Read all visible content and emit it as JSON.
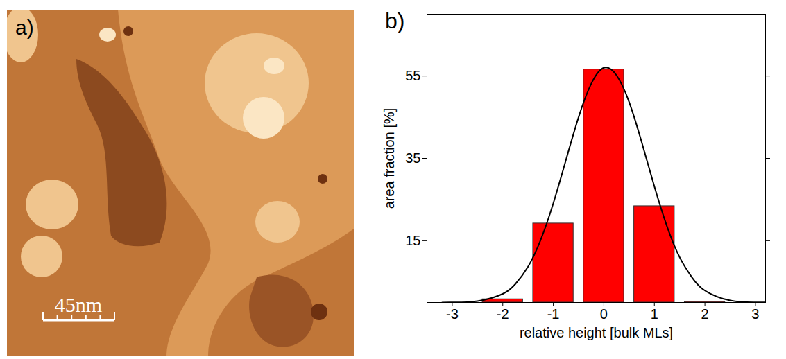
{
  "image_panel": {
    "panel_label": "a)",
    "scale_bar": "45nm"
  },
  "chart_data": {
    "type": "bar",
    "panel_label": "b)",
    "x_label": "relative height [bulk MLs]",
    "y_label": "area fraction [%]",
    "x": [
      -3,
      -2,
      -1,
      0,
      1,
      2,
      3
    ],
    "values": [
      0,
      0.8,
      19.2,
      56.6,
      23.4,
      0.2,
      0
    ],
    "color": "#ff0000",
    "xlim": [
      -3.5,
      3.2
    ],
    "xticks": [
      -3,
      -2,
      -1,
      0,
      1,
      2,
      3
    ],
    "ylim": [
      0,
      70
    ],
    "yticks": [
      15,
      35,
      55
    ],
    "fit": {
      "type": "line",
      "color": "#000000",
      "x": [
        -3.2,
        -3,
        -2.5,
        -2,
        -1.75,
        -1.5,
        -1.25,
        -1,
        -0.75,
        -0.5,
        -0.25,
        0,
        0.25,
        0.5,
        0.75,
        1,
        1.25,
        1.5,
        1.75,
        2,
        2.5,
        3,
        3.2
      ],
      "values": [
        0.02,
        0.04,
        0.35,
        2.1,
        4.5,
        8.7,
        15.2,
        24.1,
        34.6,
        45.0,
        53.1,
        57,
        55.2,
        48.7,
        38.9,
        28.2,
        18.5,
        11.0,
        6.0,
        2.9,
        0.5,
        0.06,
        0.02
      ]
    }
  }
}
